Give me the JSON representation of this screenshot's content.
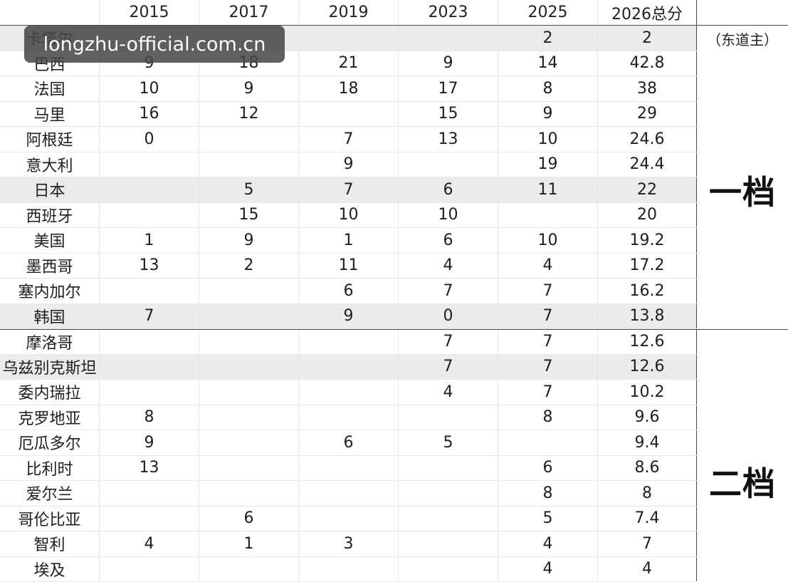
{
  "header": {
    "name_col": "",
    "years": [
      "2015",
      "2017",
      "2019",
      "2023",
      "2025"
    ],
    "total_label": "2026总分",
    "note_col": ""
  },
  "host_note": "（东道主）",
  "tiers": [
    "一档",
    "二档"
  ],
  "watermark": "longzhu-official.com.cn",
  "rows": [
    {
      "name": "卡塔尔",
      "v": [
        "",
        "",
        "",
        "",
        "2"
      ],
      "total": "2"
    },
    {
      "name": "巴西",
      "v": [
        "9",
        "18",
        "21",
        "9",
        "14"
      ],
      "total": "42.8"
    },
    {
      "name": "法国",
      "v": [
        "10",
        "9",
        "18",
        "17",
        "8"
      ],
      "total": "38"
    },
    {
      "name": "马里",
      "v": [
        "16",
        "12",
        "",
        "15",
        "9"
      ],
      "total": "29"
    },
    {
      "name": "阿根廷",
      "v": [
        "0",
        "",
        "7",
        "13",
        "10"
      ],
      "total": "24.6"
    },
    {
      "name": "意大利",
      "v": [
        "",
        "",
        "9",
        "",
        "19"
      ],
      "total": "24.4"
    },
    {
      "name": "日本",
      "v": [
        "",
        "5",
        "7",
        "6",
        "11"
      ],
      "total": "22"
    },
    {
      "name": "西班牙",
      "v": [
        "",
        "15",
        "10",
        "10",
        ""
      ],
      "total": "20"
    },
    {
      "name": "美国",
      "v": [
        "1",
        "9",
        "1",
        "6",
        "10"
      ],
      "total": "19.2"
    },
    {
      "name": "墨西哥",
      "v": [
        "13",
        "2",
        "11",
        "4",
        "4"
      ],
      "total": "17.2"
    },
    {
      "name": "塞内加尔",
      "v": [
        "",
        "",
        "6",
        "7",
        "7"
      ],
      "total": "16.2"
    },
    {
      "name": "韩国",
      "v": [
        "7",
        "",
        "9",
        "0",
        "7"
      ],
      "total": "13.8"
    },
    {
      "name": "摩洛哥",
      "v": [
        "",
        "",
        "",
        "7",
        "7"
      ],
      "total": "12.6"
    },
    {
      "name": "乌兹别克斯坦",
      "v": [
        "",
        "",
        "",
        "7",
        "7"
      ],
      "total": "12.6"
    },
    {
      "name": "委内瑞拉",
      "v": [
        "",
        "",
        "",
        "4",
        "7"
      ],
      "total": "10.2"
    },
    {
      "name": "克罗地亚",
      "v": [
        "8",
        "",
        "",
        "",
        "8"
      ],
      "total": "9.6"
    },
    {
      "name": "厄瓜多尔",
      "v": [
        "9",
        "",
        "6",
        "5",
        ""
      ],
      "total": "9.4"
    },
    {
      "name": "比利时",
      "v": [
        "13",
        "",
        "",
        "",
        "6"
      ],
      "total": "8.6"
    },
    {
      "name": "爱尔兰",
      "v": [
        "",
        "",
        "",
        "",
        "8"
      ],
      "total": "8"
    },
    {
      "name": "哥伦比亚",
      "v": [
        "",
        "6",
        "",
        "",
        "5"
      ],
      "total": "7.4"
    },
    {
      "name": "智利",
      "v": [
        "4",
        "1",
        "3",
        "",
        "4"
      ],
      "total": "7"
    },
    {
      "name": "埃及",
      "v": [
        "",
        "",
        "",
        "",
        "4"
      ],
      "total": "4"
    }
  ]
}
